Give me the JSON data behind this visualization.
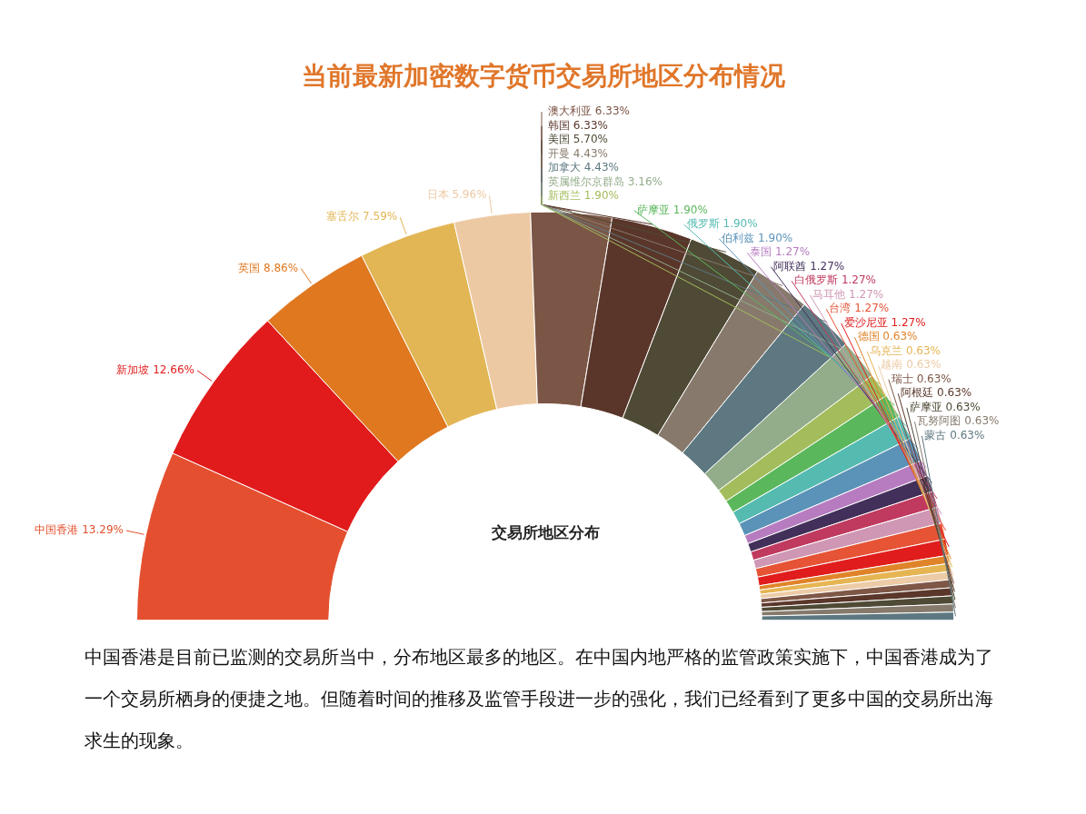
{
  "chart_data": {
    "type": "donut",
    "title": "当前最新加密数字货币交易所地区分布情况",
    "subtitle": "交易所地区分布",
    "categories": [
      "中国香港",
      "新加坡",
      "英国",
      "塞舌尔",
      "日本",
      "澳大利亚",
      "韩国",
      "美国",
      "开曼",
      "加拿大",
      "英属维尔京群岛",
      "新西兰",
      "萨摩亚",
      "俄罗斯",
      "伯利兹",
      "泰国",
      "阿联酋",
      "白俄罗斯",
      "马耳他",
      "台湾",
      "爱沙尼亚",
      "德国",
      "乌克兰",
      "越南",
      "瑞士",
      "阿根廷",
      "萨摩亚",
      "瓦努阿图",
      "蒙古"
    ],
    "values": [
      13.29,
      12.66,
      8.86,
      7.59,
      5.96,
      6.33,
      6.33,
      5.7,
      4.43,
      4.43,
      3.16,
      1.9,
      1.9,
      1.9,
      1.9,
      1.27,
      1.27,
      1.27,
      1.27,
      1.27,
      1.27,
      0.63,
      0.63,
      0.63,
      0.63,
      0.63,
      0.63,
      0.63,
      0.63
    ],
    "value_labels": [
      "13.29%",
      "12.66%",
      "8.86%",
      "7.59%",
      "5.96%",
      "6.33%",
      "6.33%",
      "5.70%",
      "4.43%",
      "4.43%",
      "3.16%",
      "1.90%",
      "1.90%",
      "1.90%",
      "1.90%",
      "1.27%",
      "1.27%",
      "1.27%",
      "1.27%",
      "1.27%",
      "1.27%",
      "0.63%",
      "0.63%",
      "0.63%",
      "0.63%",
      "0.63%",
      "0.63%",
      "0.63%",
      "0.63%"
    ],
    "colors": [
      "#e4502f",
      "#e11b1c",
      "#e07820",
      "#e2b655",
      "#edc9a3",
      "#7b5545",
      "#5a362a",
      "#4f4a35",
      "#877a6c",
      "#5d7880",
      "#93ac8a",
      "#a4bd5c",
      "#5bb75c",
      "#55bbb1",
      "#5b93b8",
      "#b77cc0",
      "#42305a",
      "#c0395e",
      "#cf97b4",
      "#e65335",
      "#e01d1c",
      "#e0842a",
      "#e6b553",
      "#eccba6",
      "#7e5746",
      "#5a372a",
      "#4f4a35",
      "#857a6c",
      "#5d7880"
    ],
    "legend": false,
    "annotations": [
      "中国香港是目前已监测的交易所当中，分布地区最多的地区。在中国内地严格的监管政策实施下，中国香港成为了一个交易所栖身的便捷之地。但随着时间的推移及监管手段进一步的强化，我们已经看到了更多中国的交易所出海求生的现象。"
    ]
  }
}
